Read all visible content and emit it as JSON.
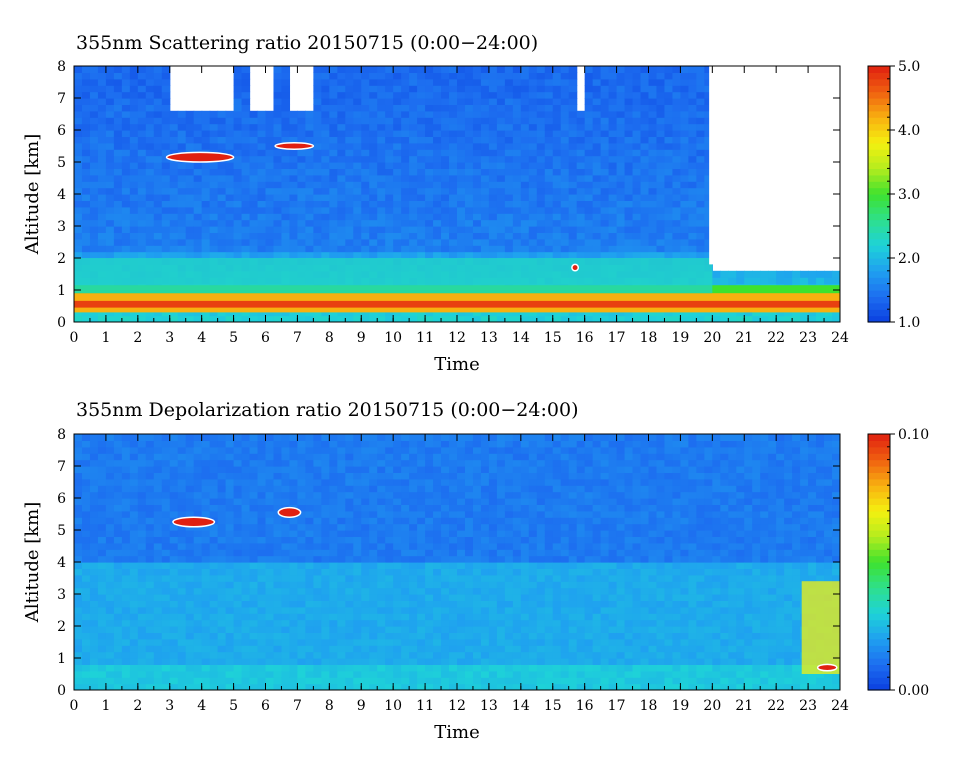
{
  "chart_data": [
    {
      "type": "heatmap",
      "title": "355nm Scattering ratio  20150715 (0:00−24:00)",
      "xlabel": "Time",
      "ylabel": "Altitude [km]",
      "xlim": [
        0,
        24
      ],
      "ylim": [
        0,
        8
      ],
      "x_ticks": [
        "0",
        "1",
        "2",
        "3",
        "4",
        "5",
        "6",
        "7",
        "8",
        "9",
        "10",
        "11",
        "12",
        "13",
        "14",
        "15",
        "16",
        "17",
        "18",
        "19",
        "20",
        "21",
        "22",
        "23",
        "24"
      ],
      "y_ticks": [
        "0",
        "1",
        "2",
        "3",
        "4",
        "5",
        "6",
        "7",
        "8"
      ],
      "colorbar": {
        "range": [
          1.0,
          5.0
        ],
        "ticks": [
          "1.0",
          "2.0",
          "3.0",
          "4.0",
          "5.0"
        ]
      },
      "features": [
        {
          "name": "boundary layer",
          "x": [
            0,
            24
          ],
          "y": [
            0.3,
            0.9
          ],
          "value": 4.5
        },
        {
          "name": "aerosol layer",
          "x": [
            0,
            20
          ],
          "y": [
            0.9,
            2.0
          ],
          "value": 2.3
        },
        {
          "name": "cloud",
          "x": [
            2.9,
            5
          ],
          "y": [
            5.0,
            5.3
          ],
          "value": 5.0
        },
        {
          "name": "cloud",
          "x": [
            6.3,
            7.5
          ],
          "y": [
            5.4,
            5.6
          ],
          "value": 5.0
        },
        {
          "name": "cloud",
          "x": [
            15.6,
            15.8
          ],
          "y": [
            1.6,
            1.8
          ],
          "value": 5.0
        },
        {
          "name": "no data",
          "x": [
            19.9,
            24
          ],
          "y": [
            1.8,
            8
          ],
          "value": null
        }
      ]
    },
    {
      "type": "heatmap",
      "title": "355nm Depolarization ratio  20150715 (0:00−24:00)",
      "xlabel": "Time",
      "ylabel": "Altitude [km]",
      "xlim": [
        0,
        24
      ],
      "ylim": [
        0,
        8
      ],
      "x_ticks": [
        "0",
        "1",
        "2",
        "3",
        "4",
        "5",
        "6",
        "7",
        "8",
        "9",
        "10",
        "11",
        "12",
        "13",
        "14",
        "15",
        "16",
        "17",
        "18",
        "19",
        "20",
        "21",
        "22",
        "23",
        "24"
      ],
      "y_ticks": [
        "0",
        "1",
        "2",
        "3",
        "4",
        "5",
        "6",
        "7",
        "8"
      ],
      "colorbar": {
        "range": [
          0.0,
          0.1
        ],
        "ticks": [
          "0.00",
          "0.10"
        ]
      },
      "features": [
        {
          "name": "background",
          "x": [
            0,
            24
          ],
          "y": [
            0,
            8
          ],
          "value": 0.01
        },
        {
          "name": "cloud",
          "x": [
            3.1,
            4.4
          ],
          "y": [
            5.1,
            5.4
          ],
          "value": 0.1
        },
        {
          "name": "cloud",
          "x": [
            6.4,
            7.1
          ],
          "y": [
            5.4,
            5.7
          ],
          "value": 0.1
        },
        {
          "name": "dust layer",
          "x": [
            22.8,
            24
          ],
          "y": [
            0.5,
            3.4
          ],
          "value": 0.07
        },
        {
          "name": "depolarizing particles",
          "x": [
            23.3,
            23.9
          ],
          "y": [
            0.6,
            0.8
          ],
          "value": 0.1
        }
      ]
    }
  ],
  "colors": {
    "scale": [
      "#0b3fe0",
      "#1d6ef0",
      "#1fa0f0",
      "#1ed2d8",
      "#2ee08c",
      "#3ee22e",
      "#b4ec1e",
      "#f4f010",
      "#f8b010",
      "#f06010",
      "#e02010"
    ],
    "no_data": "#ffffff"
  }
}
